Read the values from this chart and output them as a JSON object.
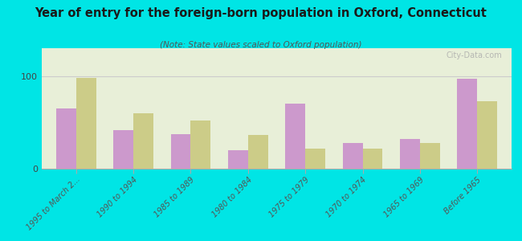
{
  "title": "Year of entry for the foreign-born population in Oxford, Connecticut",
  "subtitle": "(Note: State values scaled to Oxford population)",
  "categories": [
    "1995 to March 2...",
    "1990 to 1994",
    "1985 to 1989",
    "1980 to 1984",
    "1975 to 1979",
    "1970 to 1974",
    "1965 to 1969",
    "Before 1965"
  ],
  "oxford_values": [
    65,
    42,
    37,
    20,
    70,
    28,
    32,
    97
  ],
  "connecticut_values": [
    98,
    60,
    52,
    36,
    22,
    22,
    28,
    73
  ],
  "oxford_color": "#cc99cc",
  "connecticut_color": "#cccc88",
  "background_color": "#00e5e5",
  "plot_bg_color": "#e8efd8",
  "ylim": [
    0,
    130
  ],
  "yticks": [
    0,
    100
  ],
  "bar_width": 0.35,
  "watermark": "City-Data.com"
}
